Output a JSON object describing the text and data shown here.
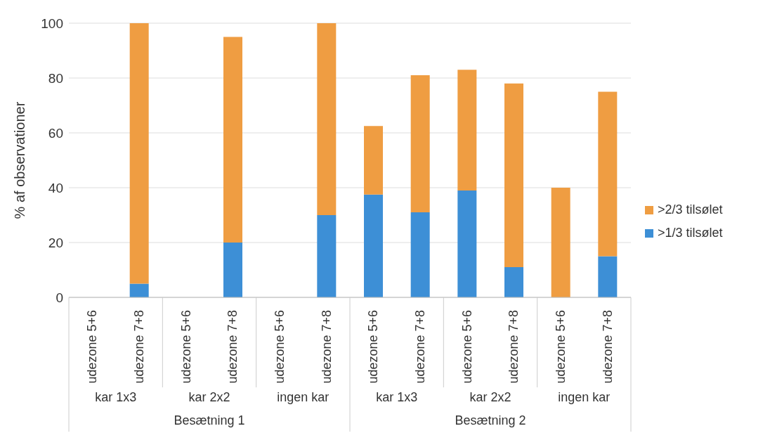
{
  "chart_data": {
    "type": "bar",
    "stacked": true,
    "ylabel": "% af observationer",
    "categories": [
      "udezone 5+6",
      "udezone 7+8",
      "udezone 5+6",
      "udezone 7+8",
      "udezone 5+6",
      "udezone 7+8",
      "udezone 5+6",
      "udezone 7+8",
      "udezone 5+6",
      "udezone 7+8",
      "udezone 5+6",
      "udezone 7+8"
    ],
    "series": [
      {
        "name": ">1/3 tilsølet",
        "color": "#3d8fd6",
        "values": [
          0,
          5,
          0,
          20,
          0,
          30,
          37.5,
          31,
          39,
          11,
          0,
          15
        ]
      },
      {
        "name": ">2/3 tilsølet",
        "color": "#ef9d42",
        "values": [
          0,
          95,
          0,
          75,
          0,
          70,
          25,
          50,
          44,
          67,
          40,
          60
        ]
      }
    ],
    "annotations": [
      "kar 1x3",
      "kar 2x2",
      "ingen kar",
      "kar 1x3",
      "kar 2x2",
      "ingen kar",
      "Besætning 1",
      "Besætning 2"
    ],
    "ylim": [
      0,
      100
    ],
    "yticks": [
      0,
      20,
      40,
      60,
      80,
      100
    ],
    "grid": "y",
    "legend": "right"
  }
}
